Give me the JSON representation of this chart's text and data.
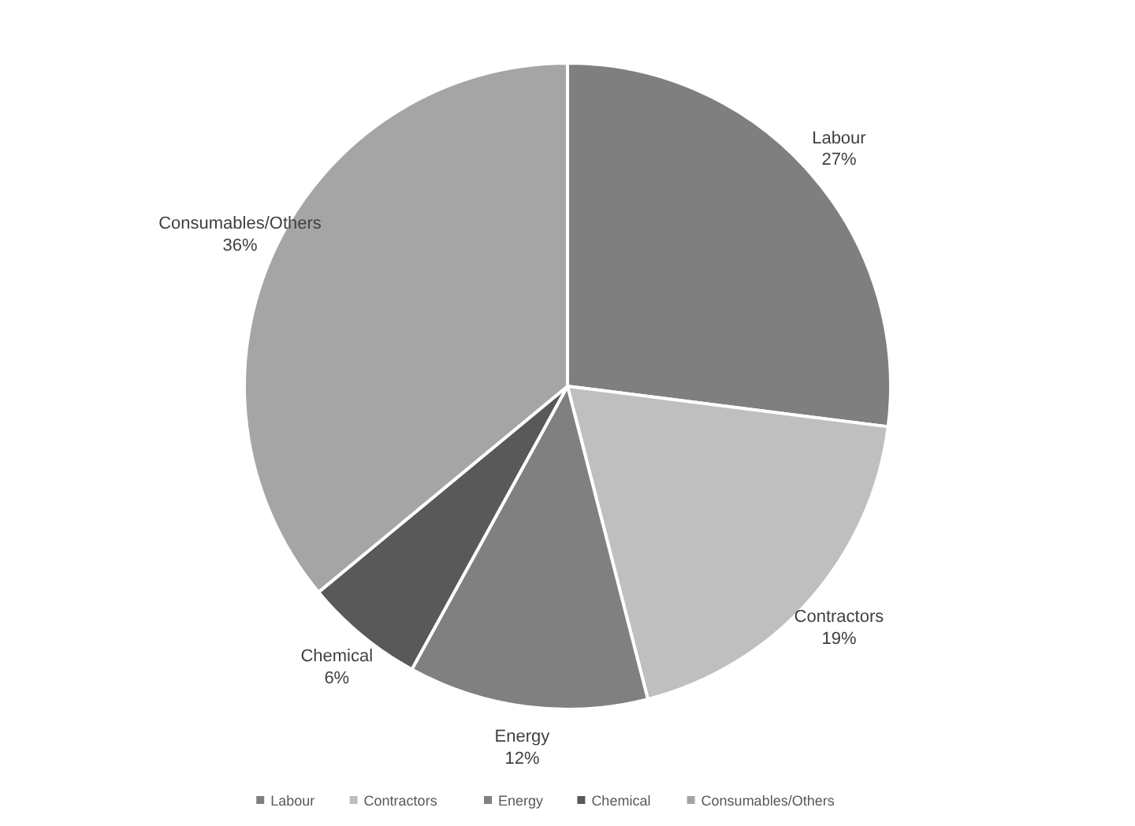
{
  "chart_data": {
    "type": "pie",
    "categories": [
      "Labour",
      "Contractors",
      "Energy",
      "Chemical",
      "Consumables/Others"
    ],
    "values": [
      27,
      19,
      12,
      6,
      36
    ],
    "colors": [
      "#7f7f7f",
      "#bfbfbf",
      "#808080",
      "#595959",
      "#a5a5a5"
    ],
    "value_labels": [
      "27%",
      "19%",
      "12%",
      "6%",
      "36%"
    ],
    "legend": "bottom"
  }
}
